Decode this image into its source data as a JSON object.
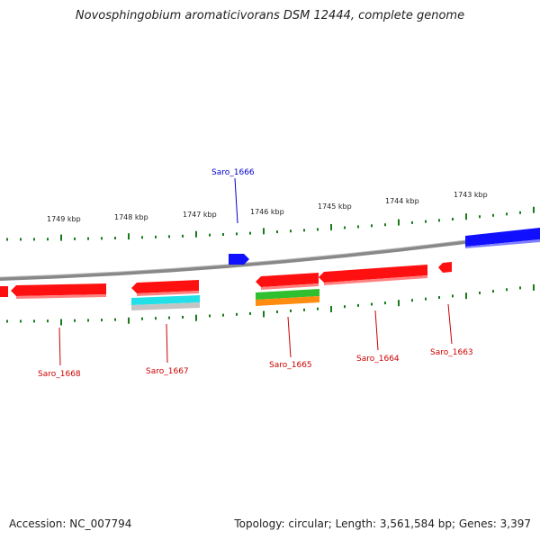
{
  "title": "Novosphingobium aromaticivorans DSM 12444, complete genome",
  "footer": {
    "accession": "Accession: NC_007794",
    "info": "Topology: circular; Length: 3,561,584 bp; Genes: 3,397"
  },
  "colors": {
    "backbone": "#808080",
    "tick": "#1a7a1a",
    "gene_red": "#ff1010",
    "gene_blue": "#1010ff",
    "label_red": "#cc0000",
    "label_blue": "#0000cc",
    "cyan": "#22e0e8",
    "gray": "#c0c0c0",
    "green": "#2fbf2f",
    "orange": "#ff8c10"
  },
  "tick_labels": [
    "1749 kbp",
    "1748 kbp",
    "1747 kbp",
    "1746 kbp",
    "1745 kbp",
    "1744 kbp",
    "1743 kbp"
  ],
  "genes": [
    {
      "id": "Saro_1666",
      "color_key": "label_blue"
    },
    {
      "id": "Saro_1668",
      "color_key": "label_red"
    },
    {
      "id": "Saro_1667",
      "color_key": "label_red"
    },
    {
      "id": "Saro_1665",
      "color_key": "label_red"
    },
    {
      "id": "Saro_1664",
      "color_key": "label_red"
    },
    {
      "id": "Saro_1663",
      "color_key": "label_red"
    }
  ]
}
